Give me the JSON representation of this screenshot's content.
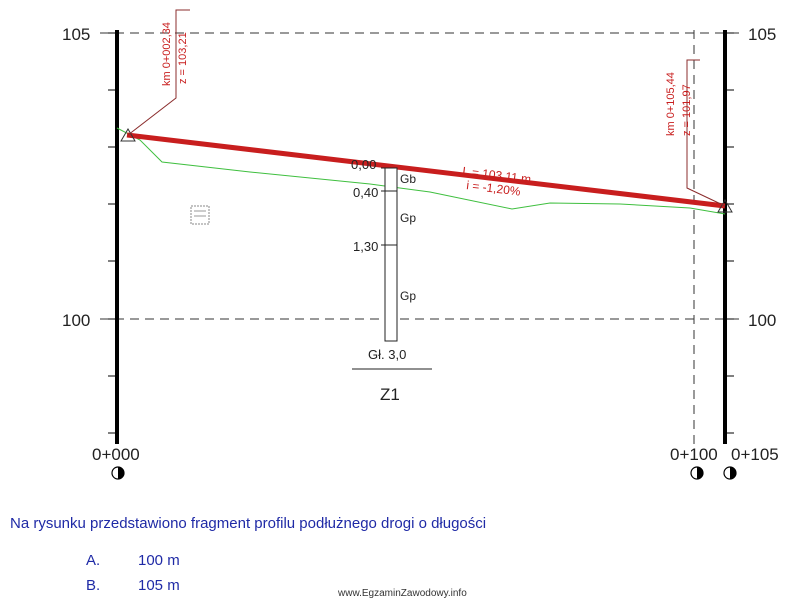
{
  "profile": {
    "y_labels": {
      "top_left": "105",
      "top_right": "105",
      "mid_left": "100",
      "mid_right": "100"
    },
    "stations": {
      "start": "0+000",
      "mid": "0+100",
      "end": "0+105"
    },
    "start_point": {
      "km": "km 0+002,34",
      "z": "z = 103,21"
    },
    "end_point": {
      "km": "km 0+105,44",
      "z": "z = 101,97"
    },
    "grade_line": {
      "length": "L = 103,11 m",
      "slope": "i = -1,20%"
    },
    "borehole": {
      "depths": [
        "0,00",
        "0,40",
        "1,30"
      ],
      "layers": [
        "Gb",
        "Gp",
        "Gp"
      ],
      "total_depth": "Gł. 3,0",
      "name": "Z1"
    },
    "colors": {
      "grade": "#c81e1e",
      "terrain": "#3fbf3f",
      "leader": "#8b2d2d",
      "text_blue": "#1f2aa6"
    }
  },
  "question": "Na rysunku przedstawiono fragment profilu  podłużnego drogi o długości",
  "answers": [
    {
      "letter": "A.",
      "text": "100 m"
    },
    {
      "letter": "B.",
      "text": "105 m"
    }
  ],
  "watermark": "www.EgzaminZawodowy.info"
}
